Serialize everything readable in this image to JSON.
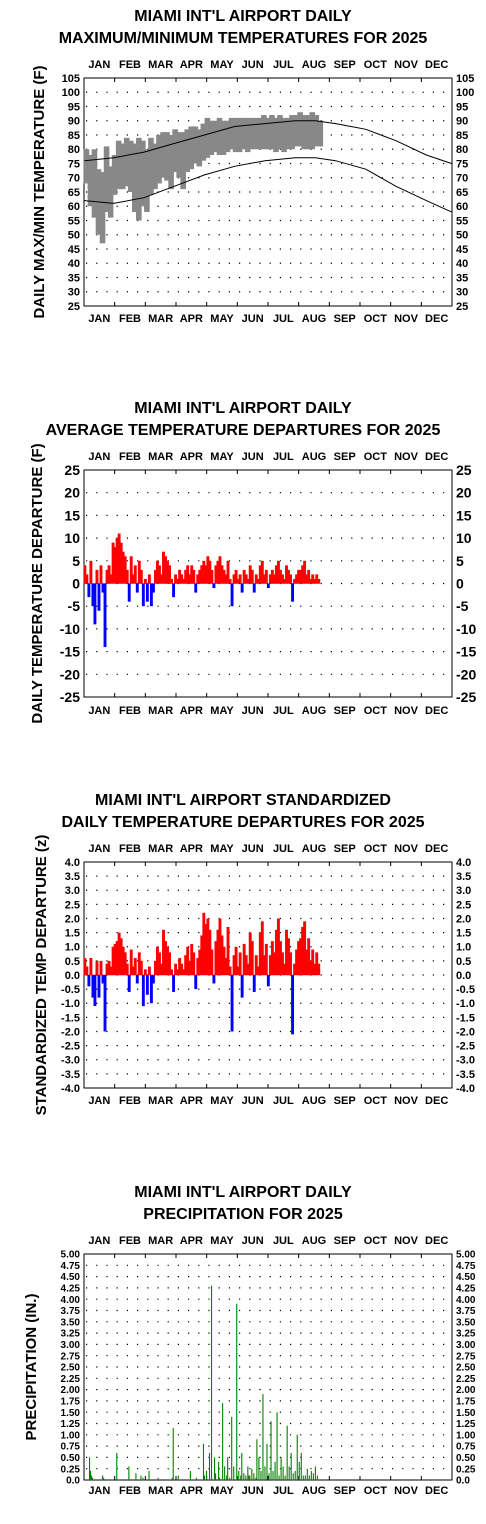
{
  "months": [
    "JAN",
    "FEB",
    "MAR",
    "APR",
    "MAY",
    "JUN",
    "JUL",
    "AUG",
    "SEP",
    "OCT",
    "NOV",
    "DEC"
  ],
  "chart_data": [
    {
      "type": "line",
      "title_line1": "MIAMI INT'L AIRPORT DAILY",
      "title_line2": "MAXIMUM/MINIMUM TEMPERATURES FOR 2025",
      "ylabel": "DAILY MAX/MIN TEMPERATURE (F)",
      "xlabel": "",
      "ylim": [
        25,
        105
      ],
      "yticks": [
        "25",
        "30",
        "35",
        "40",
        "45",
        "50",
        "55",
        "60",
        "65",
        "70",
        "75",
        "80",
        "85",
        "90",
        "95",
        "100",
        "105"
      ],
      "grid": true,
      "observed_color": "#888888",
      "normal_color": "#000000",
      "observed": {
        "day": [
          1,
          5,
          9,
          13,
          17,
          21,
          25,
          29,
          33,
          37,
          41,
          45,
          49,
          53,
          57,
          61,
          65,
          69,
          73,
          77,
          81,
          85,
          89,
          93,
          97,
          101,
          105,
          109,
          113,
          117,
          121,
          125,
          129,
          133,
          137,
          141,
          145,
          149,
          153,
          157,
          161,
          165,
          169,
          173,
          177,
          181,
          185,
          189,
          193,
          197,
          201,
          205,
          209,
          213,
          217,
          221,
          225,
          229,
          233
        ],
        "max": [
          80,
          78,
          80,
          73,
          72,
          81,
          74,
          78,
          83,
          82,
          84,
          83,
          82,
          84,
          83,
          80,
          84,
          82,
          85,
          86,
          86,
          85,
          87,
          86,
          86,
          87,
          88,
          88,
          87,
          89,
          91,
          90,
          90,
          91,
          90,
          90,
          91,
          91,
          91,
          91,
          91,
          91,
          91,
          91,
          92,
          91,
          92,
          91,
          92,
          91,
          91,
          92,
          92,
          93,
          92,
          92,
          93,
          92,
          90
        ],
        "min": [
          68,
          60,
          56,
          50,
          47,
          58,
          56,
          64,
          66,
          66,
          67,
          65,
          58,
          55,
          60,
          58,
          64,
          66,
          68,
          70,
          69,
          66,
          72,
          70,
          66,
          72,
          73,
          75,
          74,
          76,
          77,
          78,
          79,
          78,
          78,
          79,
          80,
          79,
          79,
          80,
          79,
          80,
          80,
          80,
          80,
          80,
          80,
          79,
          80,
          79,
          80,
          80,
          81,
          81,
          80,
          80,
          80,
          81,
          81
        ]
      },
      "normal_max": [
        [
          1,
          76
        ],
        [
          30,
          77
        ],
        [
          60,
          79
        ],
        [
          90,
          82
        ],
        [
          120,
          85
        ],
        [
          150,
          88
        ],
        [
          180,
          89
        ],
        [
          210,
          90
        ],
        [
          230,
          90
        ],
        [
          250,
          89
        ],
        [
          280,
          87
        ],
        [
          310,
          83
        ],
        [
          340,
          78
        ],
        [
          365,
          75
        ]
      ],
      "normal_min": [
        [
          1,
          62
        ],
        [
          30,
          61
        ],
        [
          60,
          63
        ],
        [
          90,
          67
        ],
        [
          120,
          71
        ],
        [
          150,
          74
        ],
        [
          180,
          76
        ],
        [
          210,
          77
        ],
        [
          230,
          77
        ],
        [
          250,
          76
        ],
        [
          280,
          73
        ],
        [
          310,
          67
        ],
        [
          340,
          62
        ],
        [
          365,
          58
        ]
      ]
    },
    {
      "type": "bar",
      "title_line1": "MIAMI INT'L AIRPORT DAILY",
      "title_line2": "AVERAGE TEMPERATURE DEPARTURES FOR 2025",
      "ylabel": "DAILY TEMPERATURE DEPARTURE (F)",
      "xlabel": "",
      "ylim": [
        -25,
        25
      ],
      "yticks": [
        "-25",
        "-20",
        "-15",
        "-10",
        "-5",
        "0",
        "5",
        "10",
        "15",
        "20",
        "25"
      ],
      "grid": true,
      "positive_color": "#ff0000",
      "negative_color": "#0000ff",
      "day": [
        1,
        3,
        5,
        7,
        9,
        11,
        13,
        15,
        17,
        19,
        21,
        23,
        25,
        27,
        29,
        31,
        33,
        35,
        37,
        39,
        41,
        43,
        45,
        47,
        49,
        51,
        53,
        55,
        57,
        59,
        61,
        63,
        65,
        67,
        69,
        71,
        73,
        75,
        77,
        79,
        81,
        83,
        85,
        87,
        89,
        91,
        93,
        95,
        97,
        99,
        101,
        103,
        105,
        107,
        109,
        111,
        113,
        115,
        117,
        119,
        121,
        123,
        125,
        127,
        129,
        131,
        133,
        135,
        137,
        139,
        141,
        143,
        145,
        147,
        149,
        151,
        153,
        155,
        157,
        159,
        161,
        163,
        165,
        167,
        169,
        171,
        173,
        175,
        177,
        179,
        181,
        183,
        185,
        187,
        189,
        191,
        193,
        195,
        197,
        199,
        201,
        203,
        205,
        207,
        209,
        211,
        213,
        215,
        217,
        219,
        221,
        223,
        225,
        227,
        229,
        231,
        233
      ],
      "values": [
        4,
        2,
        -3,
        5,
        -5,
        -9,
        3,
        -6,
        4,
        -2,
        -14,
        3,
        4,
        2,
        9,
        8,
        10,
        11,
        9,
        7,
        6,
        3,
        -4,
        6,
        2,
        4,
        -2,
        5,
        3,
        -5,
        1,
        -4,
        2,
        -5,
        -2,
        3,
        5,
        4,
        2,
        7,
        6,
        5,
        4,
        1,
        -3,
        2,
        1,
        3,
        2,
        1,
        3,
        4,
        2,
        4,
        3,
        -2,
        2,
        3,
        4,
        5,
        4,
        6,
        5,
        3,
        -1,
        4,
        5,
        6,
        4,
        3,
        2,
        5,
        1,
        -5,
        2,
        3,
        1,
        2,
        -2,
        3,
        2,
        1,
        4,
        3,
        -2,
        2,
        1,
        4,
        5,
        2,
        3,
        -1,
        2,
        3,
        2,
        4,
        5,
        3,
        2,
        1,
        4,
        3,
        2,
        -4,
        1,
        2,
        3,
        3,
        4,
        5,
        2,
        3,
        1,
        2,
        1,
        2,
        1
      ],
      "show_range_days": [
        1,
        233
      ]
    },
    {
      "type": "bar",
      "title_line1": "MIAMI INT'L AIRPORT STANDARDIZED",
      "title_line2": "DAILY TEMPERATURE DEPARTURES FOR 2025",
      "ylabel": "STANDARDIZED TEMP DEPARTURE (z)",
      "xlabel": "",
      "ylim": [
        -4,
        4
      ],
      "yticks": [
        "-4.0",
        "-3.5",
        "-3.0",
        "-2.5",
        "-2.0",
        "-1.5",
        "-1.0",
        "-0.5",
        "0.0",
        "0.5",
        "1.0",
        "1.5",
        "2.0",
        "2.5",
        "3.0",
        "3.5",
        "4.0"
      ],
      "grid": true,
      "positive_color": "#ff0000",
      "negative_color": "#0000ff",
      "day": [
        1,
        3,
        5,
        7,
        9,
        11,
        13,
        15,
        17,
        19,
        21,
        23,
        25,
        27,
        29,
        31,
        33,
        35,
        37,
        39,
        41,
        43,
        45,
        47,
        49,
        51,
        53,
        55,
        57,
        59,
        61,
        63,
        65,
        67,
        69,
        71,
        73,
        75,
        77,
        79,
        81,
        83,
        85,
        87,
        89,
        91,
        93,
        95,
        97,
        99,
        101,
        103,
        105,
        107,
        109,
        111,
        113,
        115,
        117,
        119,
        121,
        123,
        125,
        127,
        129,
        131,
        133,
        135,
        137,
        139,
        141,
        143,
        145,
        147,
        149,
        151,
        153,
        155,
        157,
        159,
        161,
        163,
        165,
        167,
        169,
        171,
        173,
        175,
        177,
        179,
        181,
        183,
        185,
        187,
        189,
        191,
        193,
        195,
        197,
        199,
        201,
        203,
        205,
        207,
        209,
        211,
        213,
        215,
        217,
        219,
        221,
        223,
        225,
        227,
        229,
        231,
        233
      ],
      "values": [
        0.6,
        0.3,
        -0.4,
        0.6,
        -0.8,
        -1.1,
        0.5,
        -0.8,
        0.5,
        -0.3,
        -2.0,
        0.4,
        0.5,
        0.3,
        1.0,
        1.1,
        1.2,
        1.5,
        1.3,
        1.0,
        0.8,
        0.4,
        -0.6,
        0.9,
        0.3,
        0.6,
        -0.3,
        0.8,
        0.5,
        -1.1,
        0.2,
        -0.7,
        0.3,
        -1.0,
        -0.3,
        0.5,
        1.0,
        0.8,
        0.4,
        1.6,
        1.2,
        1.0,
        0.8,
        0.2,
        -0.6,
        0.4,
        0.2,
        0.6,
        0.4,
        0.2,
        0.7,
        1.0,
        0.5,
        1.1,
        0.8,
        -0.5,
        0.6,
        0.9,
        1.4,
        2.2,
        1.8,
        2.0,
        1.6,
        0.9,
        -0.3,
        1.2,
        1.6,
        2.0,
        1.4,
        1.0,
        0.6,
        1.7,
        0.3,
        -2.0,
        0.7,
        1.0,
        0.3,
        0.8,
        -0.8,
        1.1,
        0.7,
        0.4,
        1.5,
        1.2,
        -0.6,
        0.7,
        0.3,
        1.5,
        1.9,
        0.7,
        1.1,
        -0.4,
        0.7,
        1.2,
        0.8,
        1.6,
        2.0,
        1.2,
        0.8,
        0.4,
        1.6,
        1.3,
        0.8,
        -2.1,
        0.4,
        0.9,
        1.2,
        1.3,
        1.7,
        1.9,
        0.9,
        1.3,
        0.5,
        0.9,
        0.4,
        0.8,
        0.4
      ]
    },
    {
      "type": "bar",
      "title_line1": "MIAMI INT'L AIRPORT DAILY",
      "title_line2": "PRECIPITATION FOR 2025",
      "ylabel": "PRECIPITATION (IN.)",
      "xlabel": "",
      "ylim": [
        0,
        5
      ],
      "yticks": [
        "0.0",
        "0.25",
        "0.50",
        "0.75",
        "1.00",
        "1.25",
        "1.50",
        "1.75",
        "2.00",
        "2.25",
        "2.50",
        "2.75",
        "3.00",
        "3.25",
        "3.50",
        "3.75",
        "4.00",
        "4.25",
        "4.50",
        "4.75",
        "5.00"
      ],
      "grid": true,
      "bar_color": "#008000",
      "day": [
        6,
        7,
        8,
        9,
        19,
        20,
        33,
        45,
        52,
        57,
        59,
        65,
        74,
        88,
        89,
        94,
        106,
        112,
        119,
        120,
        122,
        125,
        127,
        130,
        131,
        134,
        135,
        138,
        140,
        142,
        143,
        145,
        147,
        149,
        152,
        154,
        156,
        157,
        159,
        161,
        163,
        164,
        165,
        167,
        169,
        171,
        172,
        174,
        176,
        178,
        180,
        182,
        184,
        186,
        188,
        190,
        192,
        194,
        196,
        198,
        200,
        202,
        204,
        206,
        208,
        210,
        212,
        214,
        216,
        218,
        220,
        222,
        224,
        226,
        228,
        230,
        232
      ],
      "values": [
        0.5,
        0.2,
        0.1,
        0.05,
        0.1,
        0.05,
        0.6,
        0.3,
        0.15,
        0.1,
        0.05,
        0.2,
        0.05,
        0.05,
        1.15,
        0.1,
        0.2,
        0.05,
        0.8,
        0.1,
        0.2,
        0.6,
        4.3,
        0.5,
        0.15,
        0.4,
        0.05,
        1.7,
        0.3,
        0.1,
        0.5,
        0.05,
        1.4,
        0.3,
        3.9,
        0.2,
        0.1,
        0.6,
        0.15,
        0.1,
        0.3,
        0.1,
        0.1,
        0.25,
        0.15,
        0.05,
        0.9,
        0.5,
        0.2,
        1.9,
        0.3,
        0.8,
        0.15,
        1.3,
        0.2,
        0.4,
        1.5,
        0.1,
        0.5,
        0.3,
        0.1,
        1.2,
        0.3,
        0.6,
        0.15,
        0.2,
        1.0,
        0.4,
        0.6,
        0.1,
        0.1,
        0.25,
        0.1,
        0.2,
        0.15,
        0.3,
        0.1
      ]
    }
  ]
}
